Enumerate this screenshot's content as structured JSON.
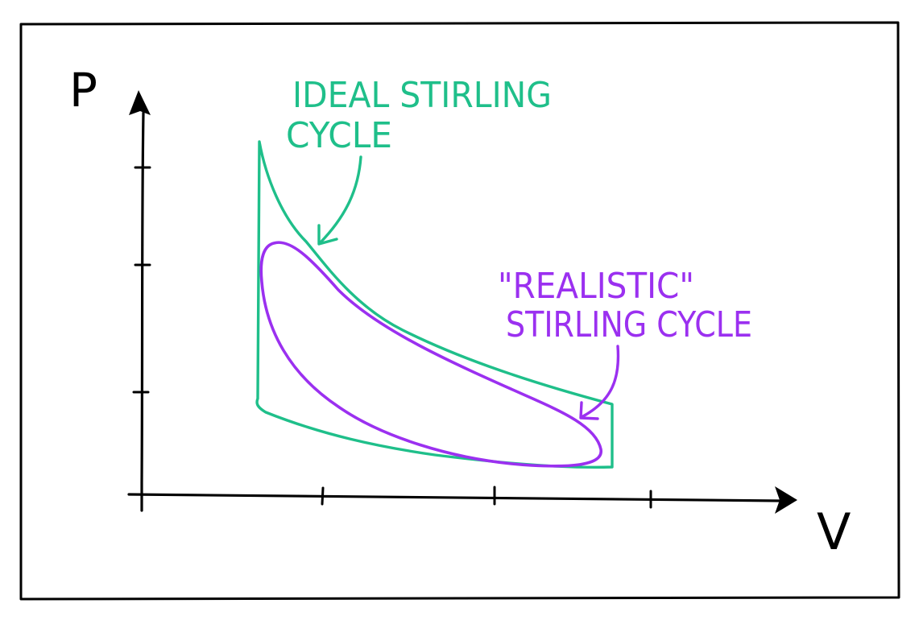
{
  "diagram": {
    "axes": {
      "y_label": "P",
      "x_label": "V"
    },
    "ideal_cycle": {
      "label_line1": "IDEAL STIRLING",
      "label_line2": "CYCLE",
      "color": "#1fbf8a"
    },
    "realistic_cycle": {
      "label_line1": "\"REALISTIC\"",
      "label_line2": "STIRLING CYCLE",
      "color": "#9b30f0"
    },
    "ink_color": "#000000"
  }
}
